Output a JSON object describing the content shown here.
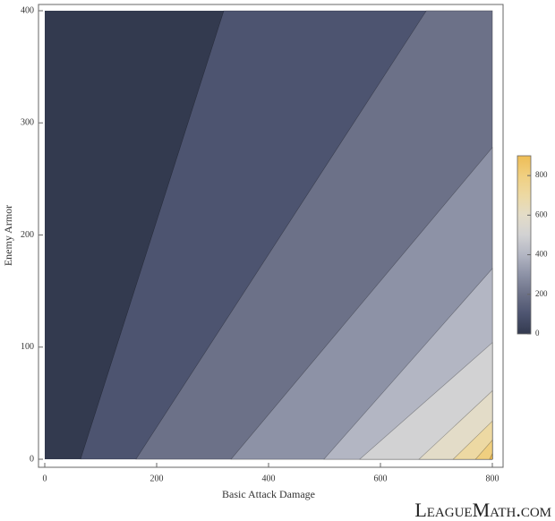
{
  "chart_data": {
    "type": "contour",
    "xlabel": "Basic Attack Damage",
    "ylabel": "Enemy Armor",
    "xlim": [
      0,
      800
    ],
    "ylim": [
      0,
      400
    ],
    "xticks": [
      0,
      200,
      400,
      600,
      800
    ],
    "yticks": [
      0,
      100,
      200,
      300,
      400
    ],
    "color": "#333a4f",
    "contours": [
      {
        "level": 100,
        "color": "#4d5470",
        "x": [
          64,
          320
        ],
        "y": [
          0,
          400
        ]
      },
      {
        "level": 200,
        "color": "#6c7188",
        "x": [
          163,
          682
        ],
        "y": [
          0,
          400
        ]
      },
      {
        "level": 300,
        "color": "#8d92a6",
        "x": [
          333,
          800
        ],
        "y": [
          0,
          278
        ]
      },
      {
        "level": 400,
        "color": "#b3b6c3",
        "x": [
          499,
          800
        ],
        "y": [
          0,
          170
        ]
      },
      {
        "level": 500,
        "color": "#d2d2d3",
        "x": [
          563,
          800
        ],
        "y": [
          0,
          104
        ]
      },
      {
        "level": 600,
        "color": "#e3dcc8",
        "x": [
          669,
          800
        ],
        "y": [
          0,
          61
        ]
      },
      {
        "level": 700,
        "color": "#edd9a3",
        "x": [
          730,
          800
        ],
        "y": [
          0,
          34
        ]
      },
      {
        "level": 800,
        "color": "#f0cf80",
        "x": [
          770,
          800
        ],
        "y": [
          0,
          17
        ]
      },
      {
        "level": 900,
        "color": "#eebd55",
        "x": [
          795,
          800
        ],
        "y": [
          0,
          5
        ]
      }
    ],
    "colorbar": {
      "lim": [
        0,
        900
      ],
      "ticks": [
        0,
        200,
        400,
        600,
        800
      ]
    },
    "watermark": "LeagueMath.com"
  }
}
